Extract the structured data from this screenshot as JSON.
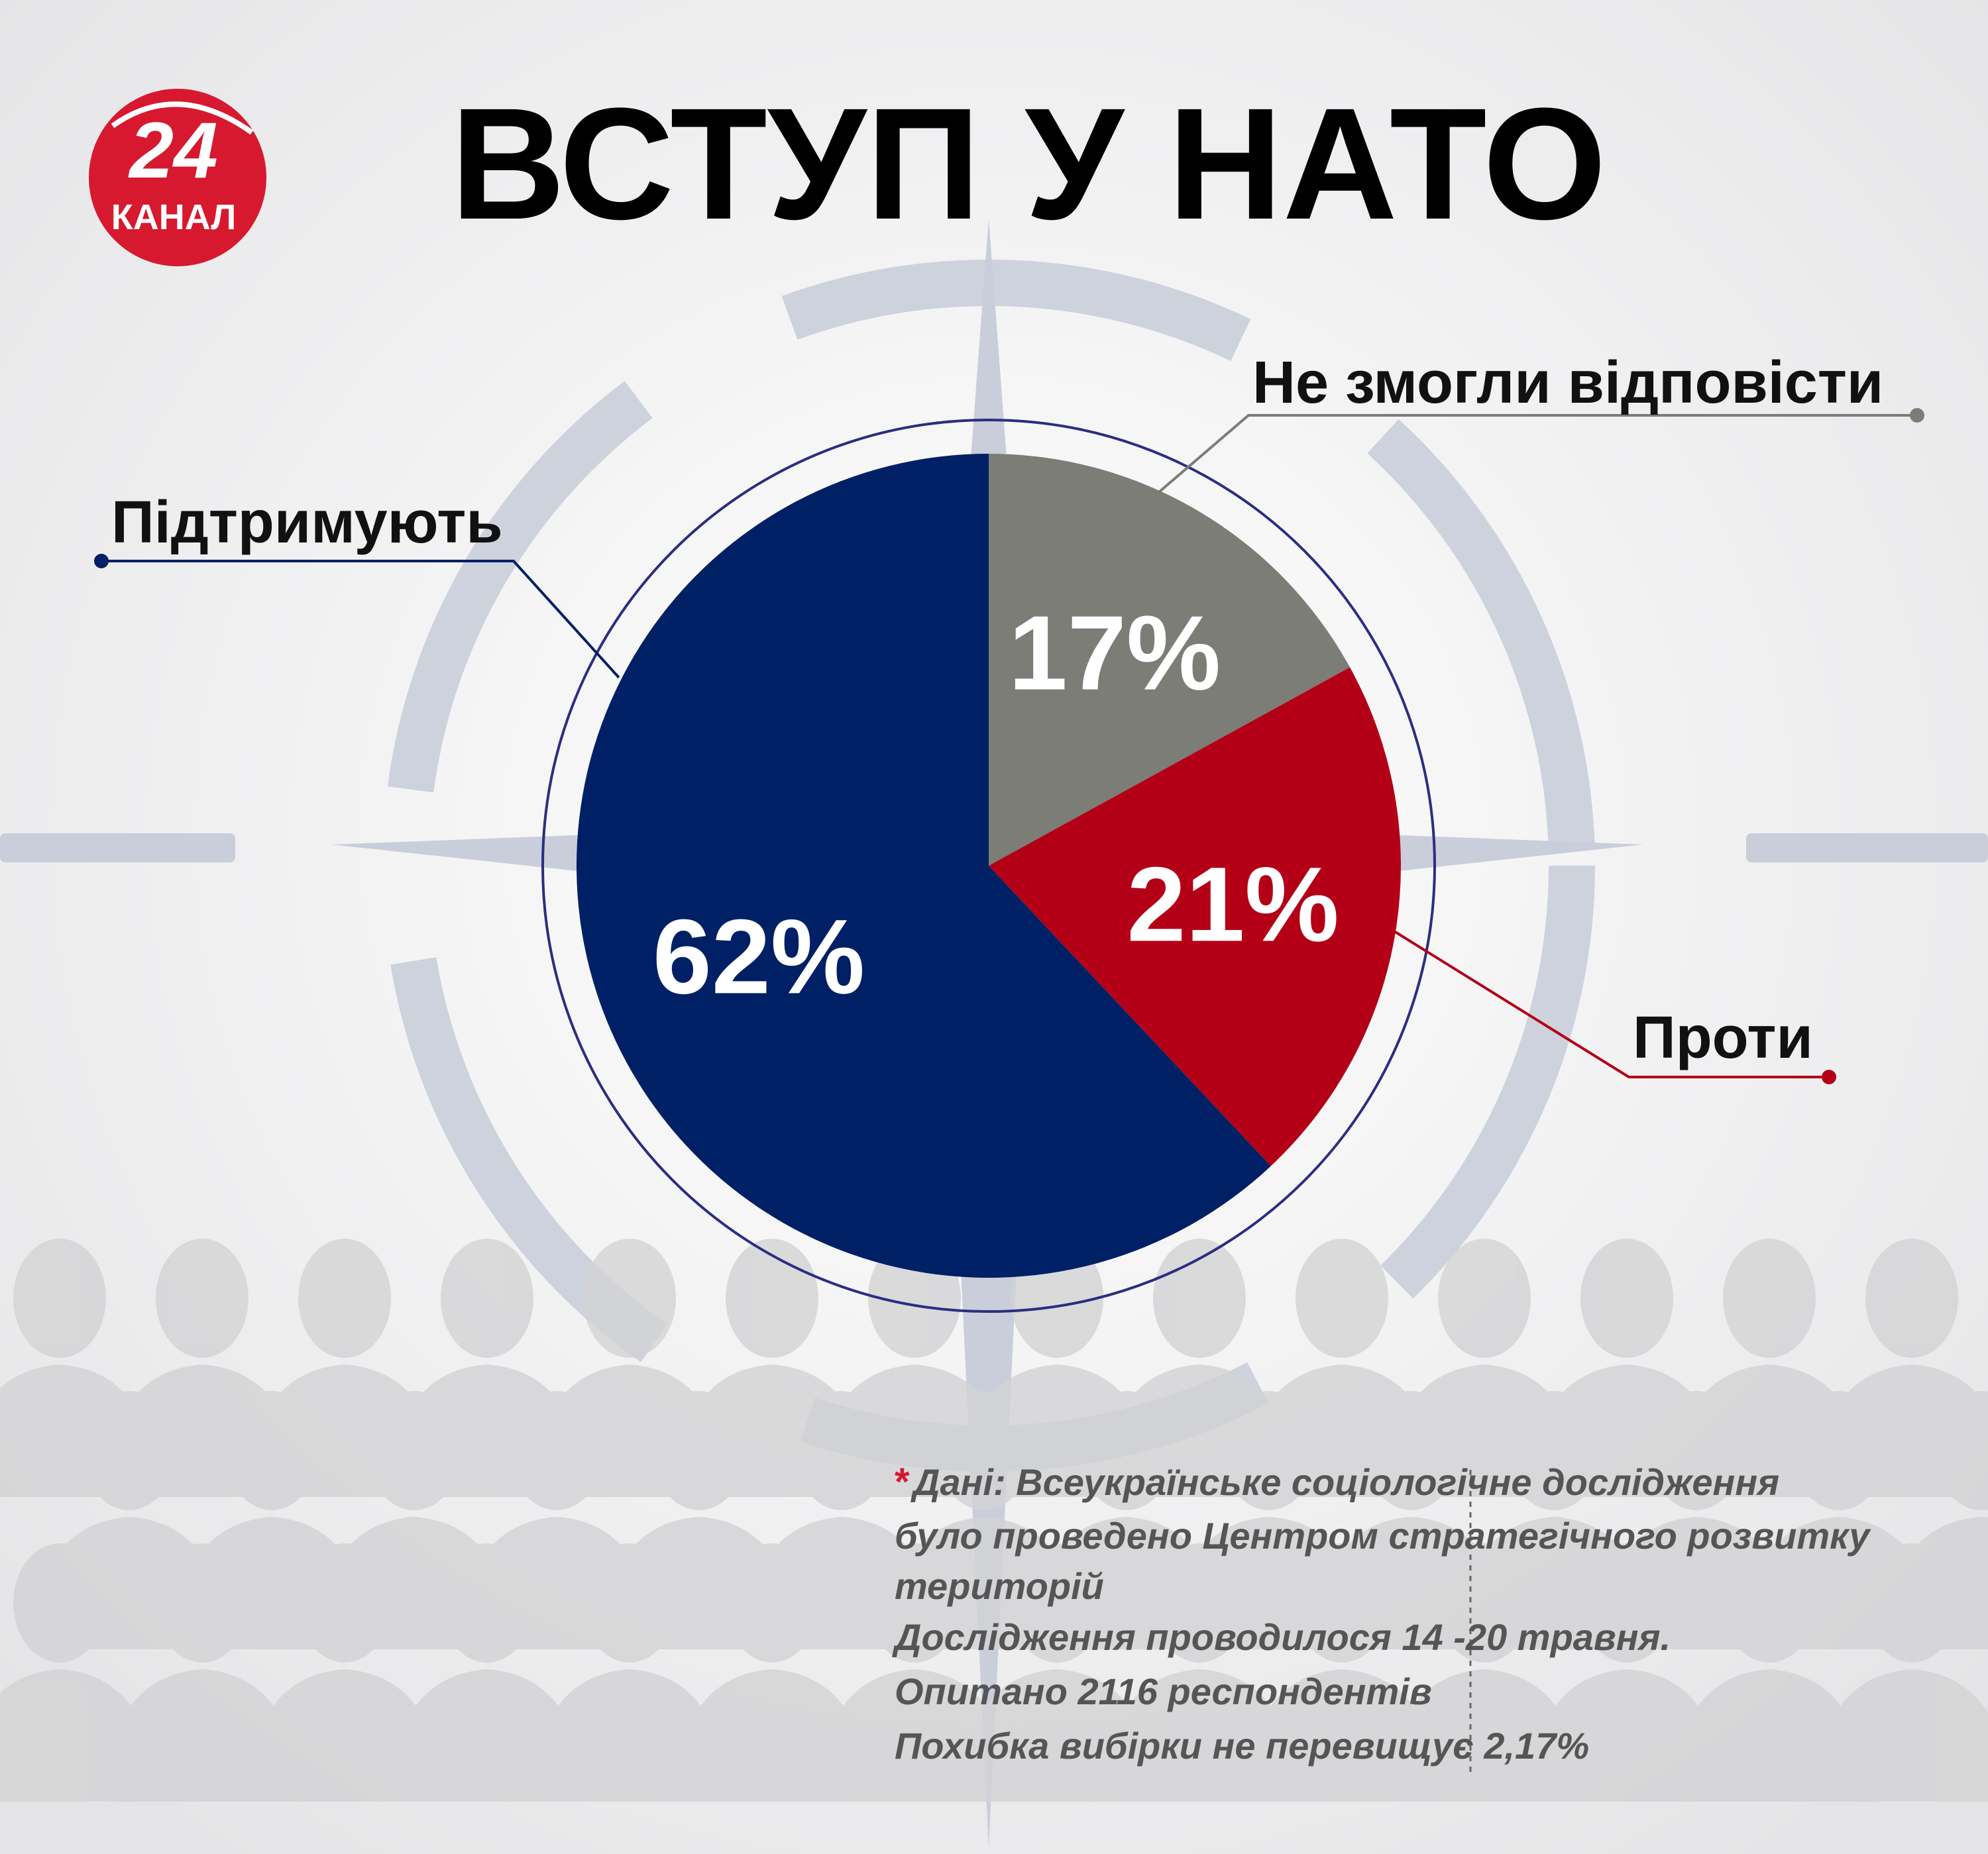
{
  "logo": {
    "number": "24",
    "name": "КАНАЛ"
  },
  "chart_data": {
    "type": "pie",
    "title": "ВСТУП У НАТО",
    "categories": [
      "Не змогли відповісти",
      "Проти",
      "Підтримують"
    ],
    "values": [
      17,
      21,
      62
    ],
    "value_labels": [
      "17%",
      "21%",
      "62%"
    ],
    "colors": [
      "#7b7d76",
      "#b30017",
      "#002066"
    ]
  },
  "footnote": {
    "marker": "*",
    "lines": [
      "Дані: Всеукраїнське соціологічне дослідження",
      "було проведено Центром стратегічного розвитку",
      "територій",
      "Дослідження проводилося 14 -20 травня.",
      "Опитано 2116 респондентів",
      "Похибка вибірки не перевищує 2,17%"
    ]
  }
}
